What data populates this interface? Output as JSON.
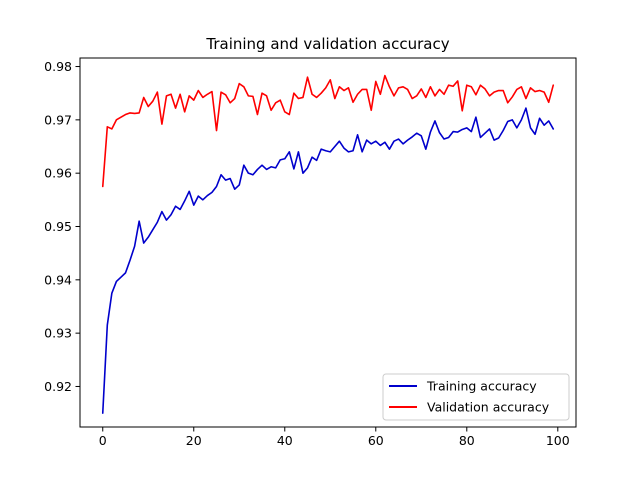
{
  "chart_data": {
    "type": "line",
    "title": "Training and validation accuracy",
    "xlabel": "",
    "ylabel": "",
    "xlim": [
      -5,
      104
    ],
    "ylim": [
      0.9124,
      0.9816
    ],
    "xticks": [
      0,
      20,
      40,
      60,
      80,
      100
    ],
    "yticks": [
      0.92,
      0.93,
      0.94,
      0.95,
      0.96,
      0.97,
      0.98
    ],
    "grid": false,
    "legend_position": "lower-right",
    "series": [
      {
        "name": "Training accuracy",
        "color": "#0000cc",
        "values": [
          0.915,
          0.9315,
          0.9375,
          0.9397,
          0.9405,
          0.9413,
          0.9437,
          0.9463,
          0.951,
          0.9469,
          0.948,
          0.9494,
          0.9508,
          0.9528,
          0.9512,
          0.9522,
          0.9538,
          0.9532,
          0.9548,
          0.9566,
          0.954,
          0.9557,
          0.955,
          0.9558,
          0.9564,
          0.9575,
          0.9597,
          0.9587,
          0.959,
          0.957,
          0.9578,
          0.9615,
          0.96,
          0.9597,
          0.9607,
          0.9615,
          0.9607,
          0.9612,
          0.961,
          0.9625,
          0.9627,
          0.964,
          0.9608,
          0.964,
          0.96,
          0.961,
          0.963,
          0.9624,
          0.9645,
          0.9642,
          0.964,
          0.965,
          0.966,
          0.9647,
          0.964,
          0.9642,
          0.9672,
          0.964,
          0.9662,
          0.9655,
          0.966,
          0.9652,
          0.9658,
          0.9645,
          0.966,
          0.9664,
          0.9655,
          0.9662,
          0.9668,
          0.9675,
          0.967,
          0.9645,
          0.9677,
          0.9698,
          0.9676,
          0.9664,
          0.9667,
          0.9678,
          0.9677,
          0.9682,
          0.9685,
          0.9678,
          0.9705,
          0.9667,
          0.9675,
          0.9683,
          0.9662,
          0.9666,
          0.968,
          0.9697,
          0.97,
          0.9685,
          0.97,
          0.9722,
          0.9685,
          0.9673,
          0.9703,
          0.969,
          0.9698,
          0.9683
        ]
      },
      {
        "name": "Validation accuracy",
        "color": "#ff0000",
        "values": [
          0.9575,
          0.9687,
          0.9683,
          0.97,
          0.9705,
          0.971,
          0.9713,
          0.9712,
          0.9713,
          0.9742,
          0.9725,
          0.9735,
          0.9752,
          0.9692,
          0.9745,
          0.9748,
          0.9722,
          0.9748,
          0.9715,
          0.9745,
          0.9737,
          0.9755,
          0.9742,
          0.9748,
          0.9753,
          0.968,
          0.9752,
          0.9747,
          0.9732,
          0.974,
          0.9768,
          0.9762,
          0.9745,
          0.9744,
          0.971,
          0.975,
          0.9745,
          0.9718,
          0.9732,
          0.9737,
          0.9715,
          0.971,
          0.975,
          0.974,
          0.9742,
          0.978,
          0.9748,
          0.9742,
          0.975,
          0.976,
          0.9775,
          0.974,
          0.9762,
          0.9755,
          0.976,
          0.9733,
          0.9748,
          0.9757,
          0.9757,
          0.9718,
          0.9772,
          0.9748,
          0.9783,
          0.9762,
          0.9745,
          0.976,
          0.9762,
          0.9757,
          0.974,
          0.9745,
          0.9758,
          0.9742,
          0.9762,
          0.9745,
          0.9757,
          0.9748,
          0.9765,
          0.9763,
          0.9773,
          0.9717,
          0.9765,
          0.9762,
          0.9747,
          0.9765,
          0.9758,
          0.9745,
          0.9752,
          0.9755,
          0.9755,
          0.9732,
          0.9743,
          0.9757,
          0.9762,
          0.974,
          0.976,
          0.9753,
          0.9755,
          0.9752,
          0.9733,
          0.9765
        ]
      }
    ]
  }
}
